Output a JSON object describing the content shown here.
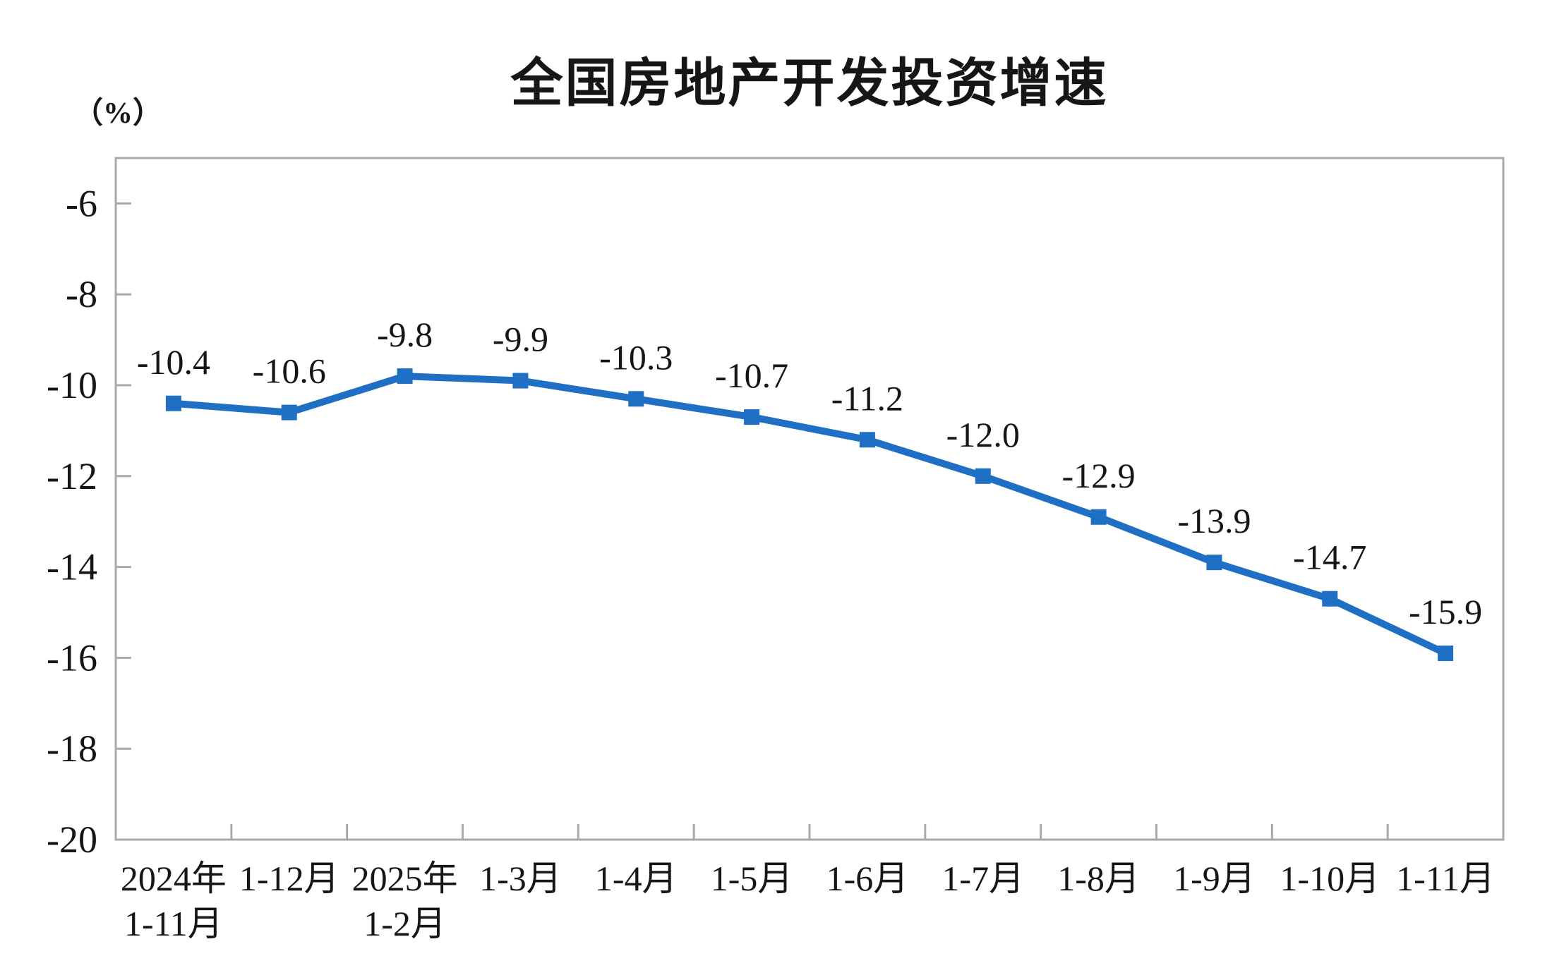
{
  "chart_data": {
    "type": "line",
    "title": "全国房地产开发投资增速",
    "unit_label": "（%）",
    "categories": [
      [
        "2024年",
        "1-11月"
      ],
      [
        "1-12月"
      ],
      [
        "2025年",
        "1-2月"
      ],
      [
        "1-3月"
      ],
      [
        "1-4月"
      ],
      [
        "1-5月"
      ],
      [
        "1-6月"
      ],
      [
        "1-7月"
      ],
      [
        "1-8月"
      ],
      [
        "1-9月"
      ],
      [
        "1-10月"
      ],
      [
        "1-11月"
      ]
    ],
    "values": [
      -10.4,
      -10.6,
      -9.8,
      -9.9,
      -10.3,
      -10.7,
      -11.2,
      -12.0,
      -12.9,
      -13.9,
      -14.7,
      -15.9
    ],
    "data_labels": [
      "-10.4",
      "-10.6",
      "-9.8",
      "-9.9",
      "-10.3",
      "-10.7",
      "-11.2",
      "-12.0",
      "-12.9",
      "-13.9",
      "-14.7",
      "-15.9"
    ],
    "xlabel": "",
    "ylabel": "（%）",
    "ylim": [
      -20,
      -5
    ],
    "yticks": [
      -6,
      -8,
      -10,
      -12,
      -14,
      -16,
      -18,
      -20
    ],
    "ytick_labels": [
      "-6",
      "-8",
      "-10",
      "-12",
      "-14",
      "-16",
      "-18",
      "-20"
    ],
    "grid": "off",
    "legend": "none",
    "marker": "square",
    "colors": {
      "line": "#1f6fc4",
      "marker": "#1f6fc4",
      "axis": "#a9a9a9",
      "text": "#161616",
      "background": "#ffffff"
    }
  }
}
